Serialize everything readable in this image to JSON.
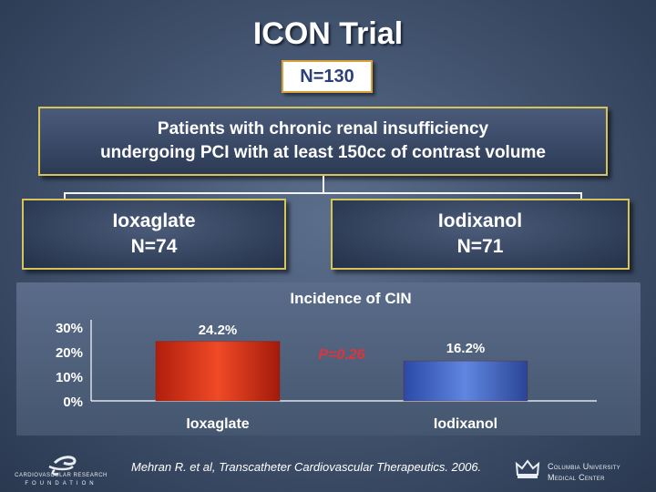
{
  "slide": {
    "title": "ICON Trial",
    "n_label": "N=130"
  },
  "population": {
    "line1": "Patients with chronic renal insufficiency",
    "line2": "undergoing PCI with at least 150cc of contrast volume"
  },
  "arms": [
    {
      "name": "Ioxaglate",
      "n": "N=74"
    },
    {
      "name": "Iodixanol",
      "n": "N=71"
    }
  ],
  "chart_data": {
    "type": "bar",
    "title": "Incidence of CIN",
    "categories": [
      "Ioxaglate",
      "Iodixanol"
    ],
    "values": [
      24.2,
      16.2
    ],
    "data_labels": [
      "24.2%",
      "16.2%"
    ],
    "y_ticks": [
      "0%",
      "10%",
      "20%",
      "30%"
    ],
    "ylim": [
      0,
      30
    ],
    "annotation": "P=0.26",
    "bar_colors": [
      "#d9341b",
      "#3f63c4"
    ]
  },
  "footer": {
    "citation": "Mehran R. et al, Transcatheter Cardiovascular Therapeutics. 2006.",
    "left_logo_line1": "CARDIOVASCULAR RESEARCH",
    "left_logo_line2": "FOUNDATION",
    "right_logo_line1": "Columbia University",
    "right_logo_line2": "Medical Center"
  },
  "colors": {
    "background": "#3f506b",
    "box_border": "#d6c35a",
    "n_box_text": "#2b3f7c"
  }
}
